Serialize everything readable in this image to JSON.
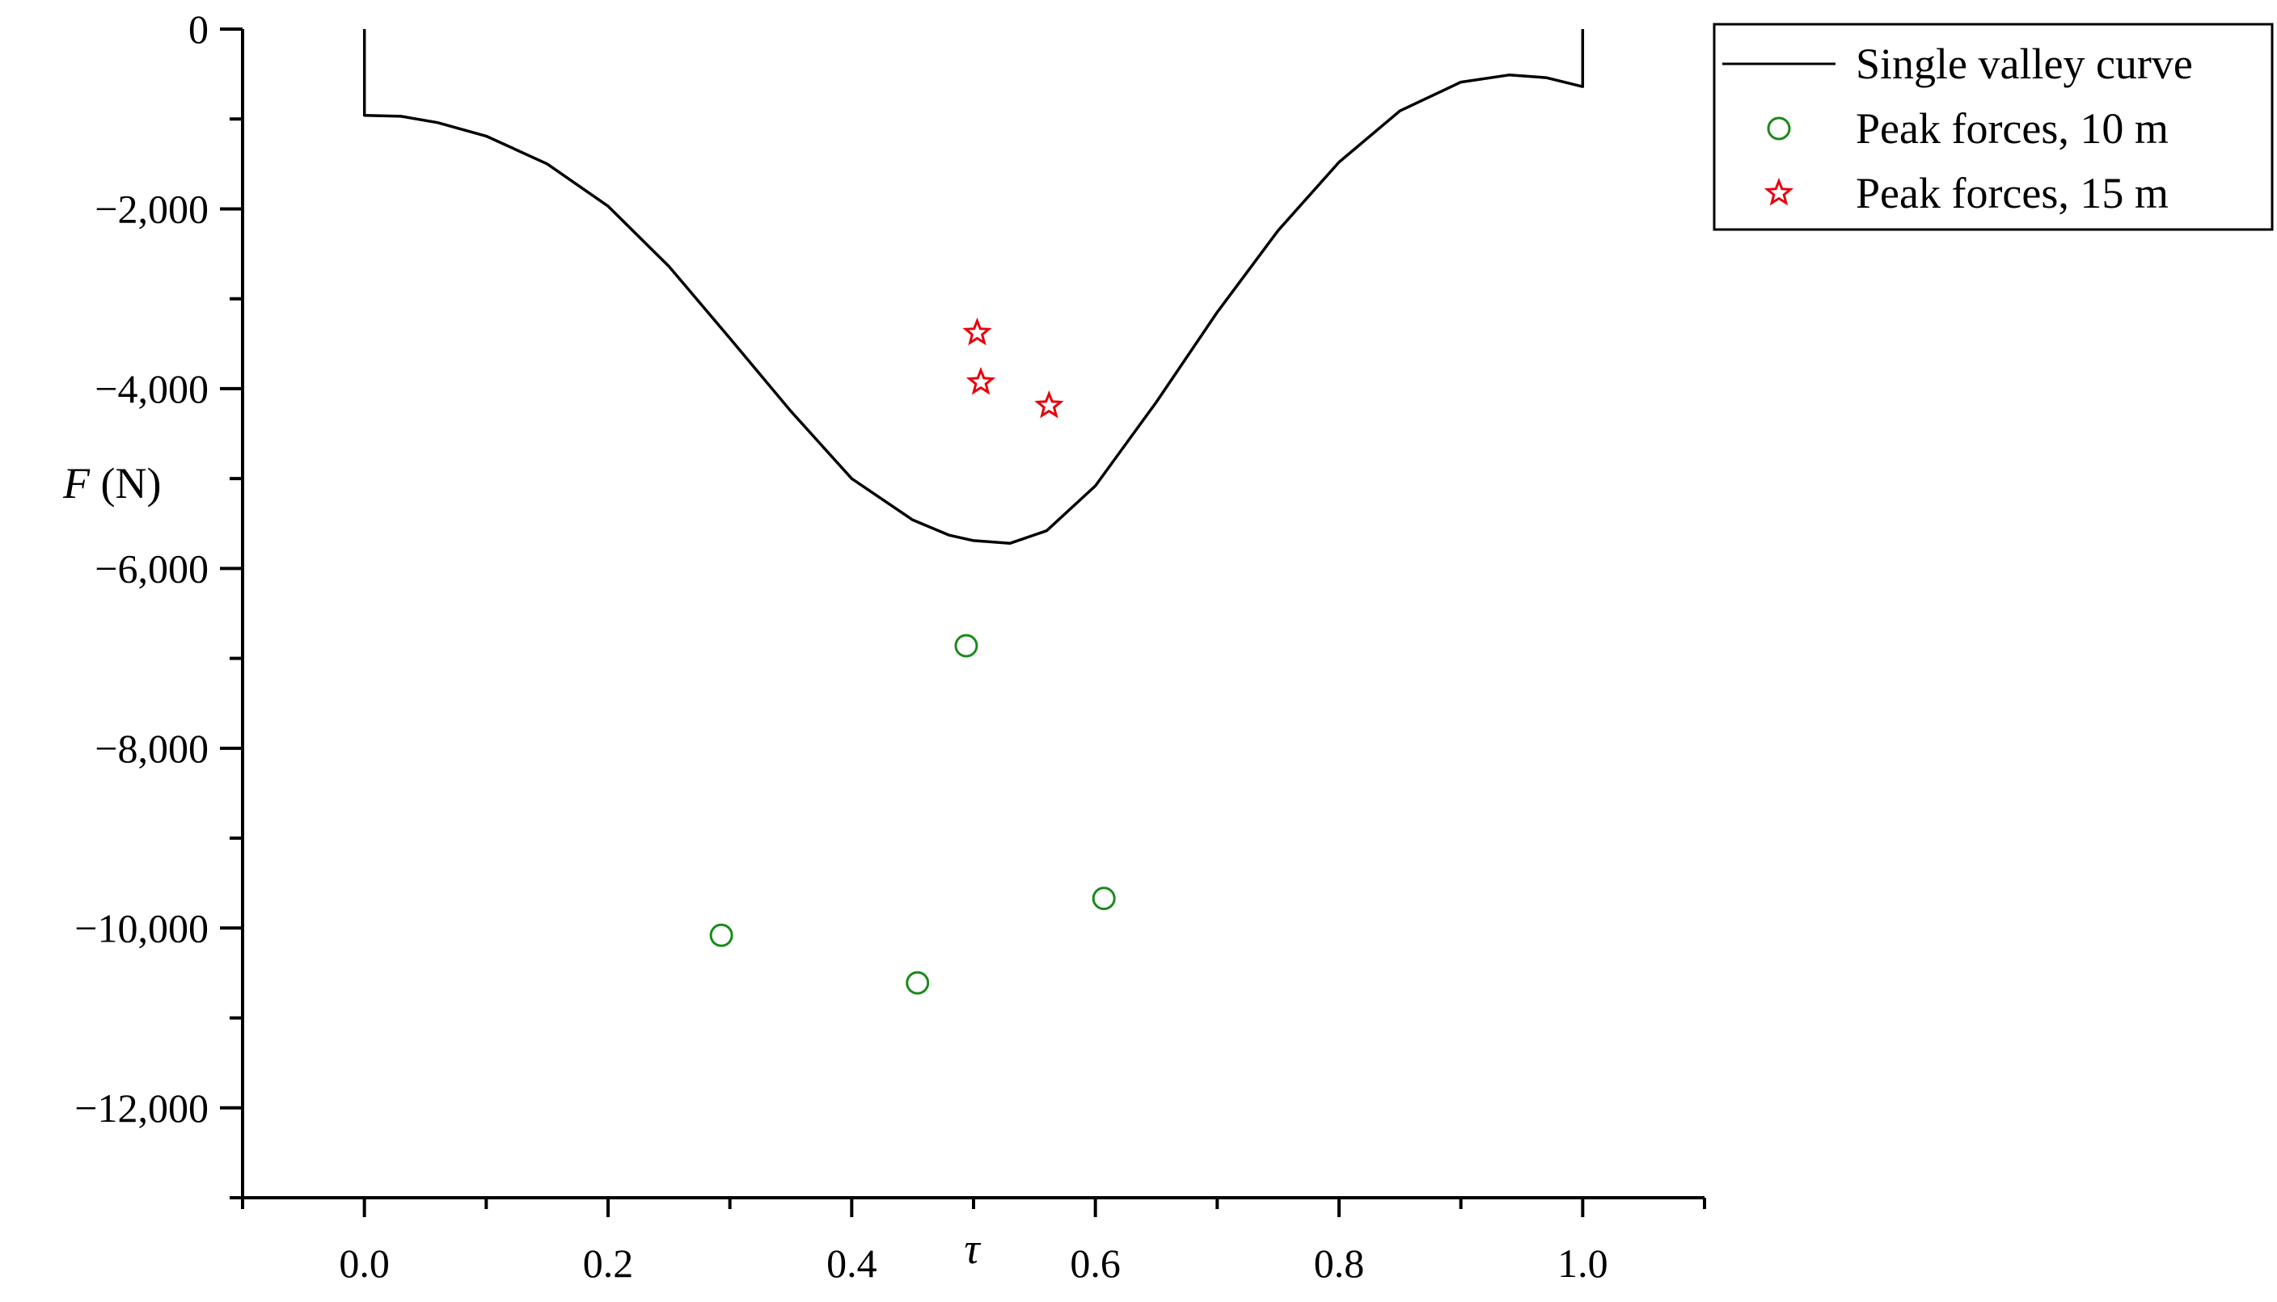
{
  "chart_data": {
    "type": "line",
    "xlabel": "τ",
    "ylabel_var": "F",
    "ylabel_unit": " (N)",
    "xlim": [
      -0.1,
      1.1
    ],
    "ylim": [
      -13000,
      0
    ],
    "grid": false,
    "legend_position": "top-right",
    "x_ticks": [
      {
        "value": 0.0,
        "label": "0.0"
      },
      {
        "value": 0.2,
        "label": "0.2"
      },
      {
        "value": 0.4,
        "label": "0.4"
      },
      {
        "value": 0.6,
        "label": "0.6"
      },
      {
        "value": 0.8,
        "label": "0.8"
      },
      {
        "value": 1.0,
        "label": "1.0"
      }
    ],
    "y_ticks": [
      {
        "value": 0,
        "label": "0"
      },
      {
        "value": -2000,
        "label": "−2,000"
      },
      {
        "value": -4000,
        "label": "−4,000"
      },
      {
        "value": -6000,
        "label": "−6,000"
      },
      {
        "value": -8000,
        "label": "−8,000"
      },
      {
        "value": -10000,
        "label": "−10,000"
      },
      {
        "value": -12000,
        "label": "−12,000"
      }
    ],
    "series": [
      {
        "name": "Single valley curve",
        "kind": "line",
        "color": "#000000",
        "x": [
          0,
          0,
          0.03,
          0.06,
          0.1,
          0.15,
          0.2,
          0.25,
          0.3,
          0.35,
          0.4,
          0.45,
          0.48,
          0.5,
          0.53,
          0.56,
          0.6,
          0.65,
          0.7,
          0.75,
          0.8,
          0.85,
          0.9,
          0.94,
          0.97,
          1.0,
          1.0
        ],
        "y": [
          0,
          -960,
          -970,
          -1040,
          -1190,
          -1500,
          -1970,
          -2640,
          -3440,
          -4250,
          -5000,
          -5460,
          -5630,
          -5690,
          -5720,
          -5580,
          -5080,
          -4150,
          -3150,
          -2240,
          -1480,
          -910,
          -590,
          -510,
          -540,
          -640,
          0
        ]
      },
      {
        "name": "Peak forces, 10 m",
        "kind": "scatter",
        "marker": "circle",
        "color": "#1a8a1a",
        "x": [
          0.293,
          0.454,
          0.494,
          0.607
        ],
        "y": [
          -10080,
          -10610,
          -6860,
          -9670
        ]
      },
      {
        "name": "Peak forces, 15 m",
        "kind": "scatter",
        "marker": "star",
        "color": "#e8000b",
        "x": [
          0.503,
          0.506,
          0.562
        ],
        "y": [
          -3380,
          -3930,
          -4190
        ]
      }
    ]
  }
}
